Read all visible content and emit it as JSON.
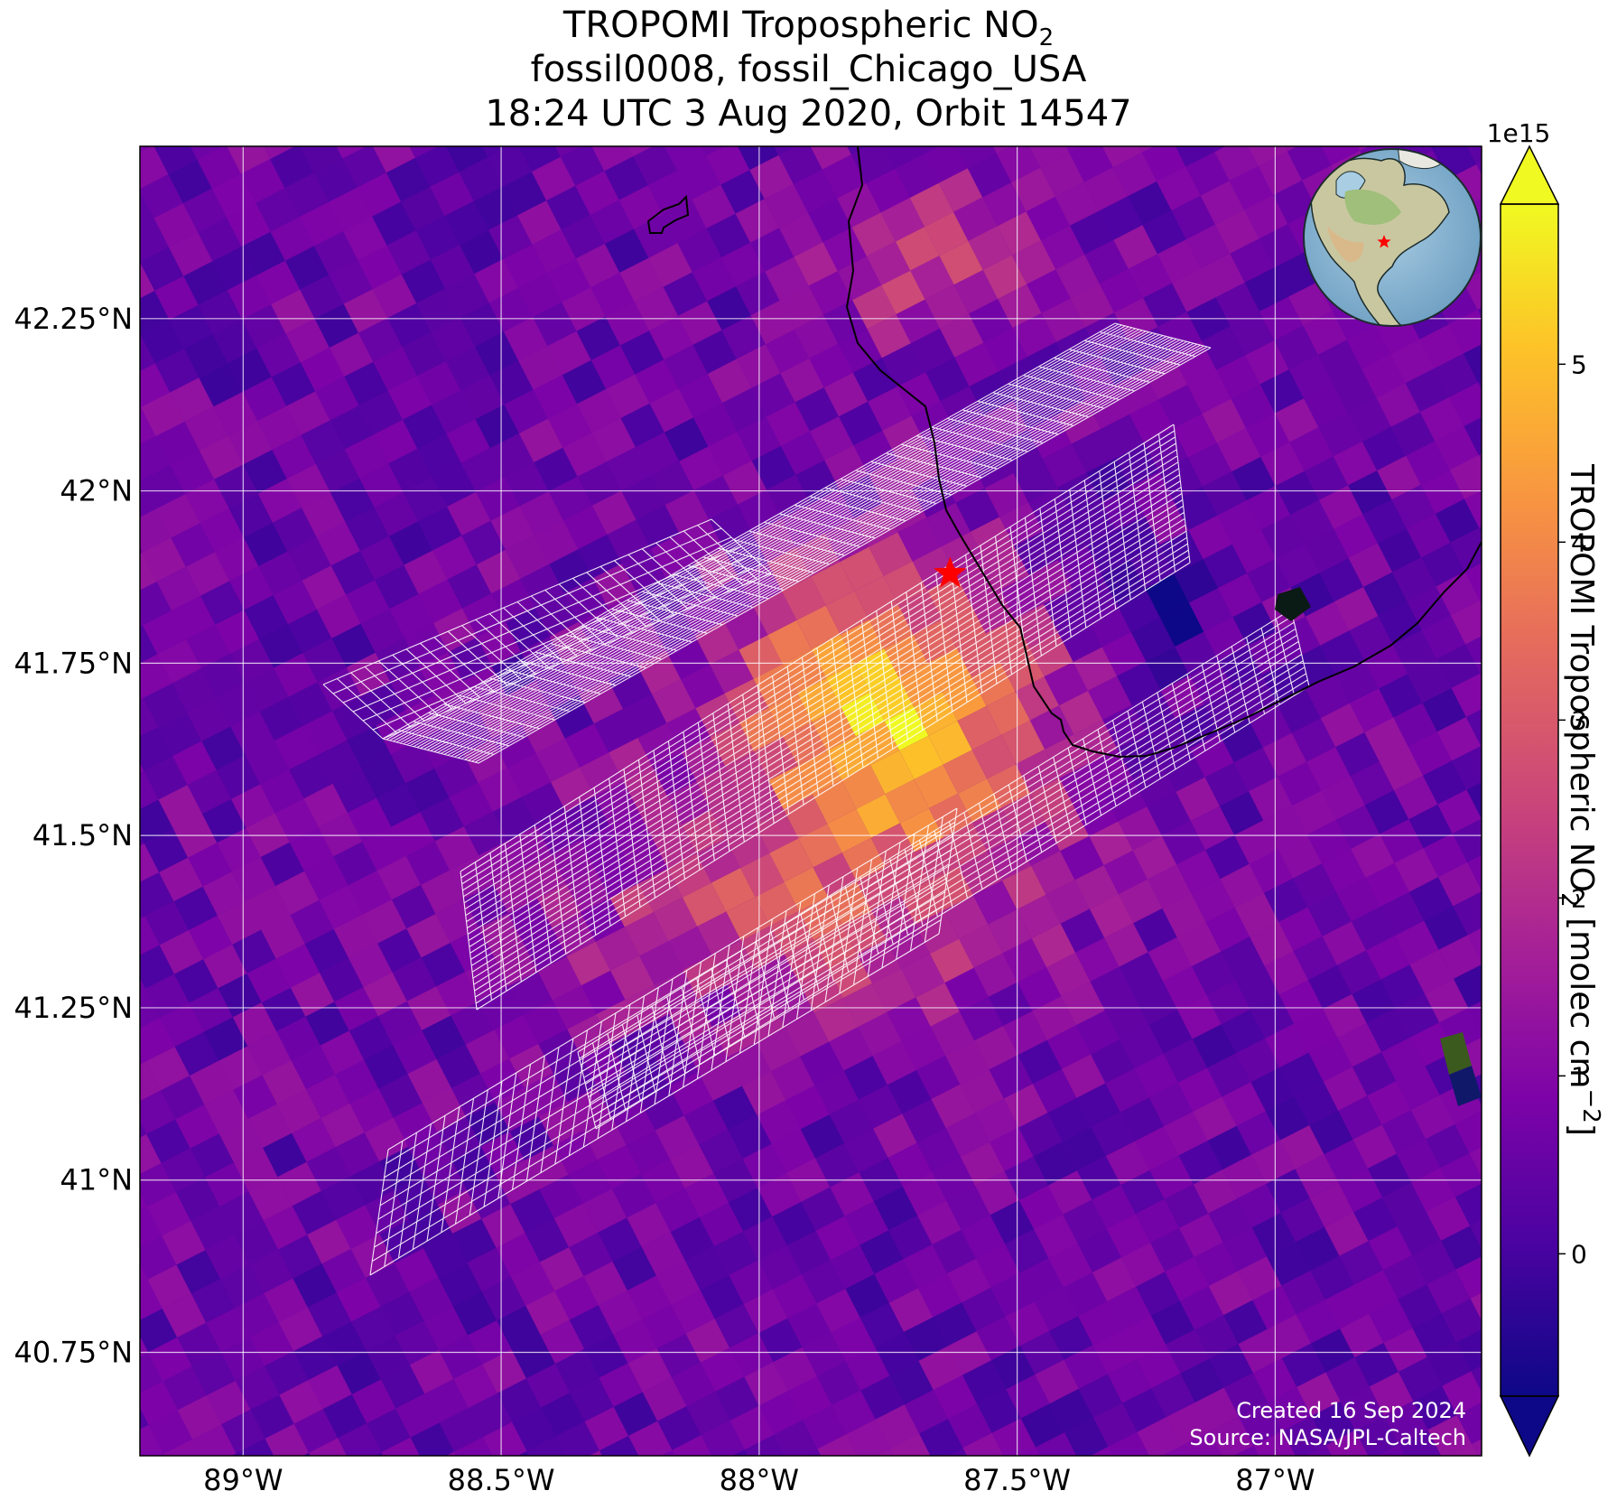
{
  "title": {
    "line1_prefix": "TROPOMI Tropospheric NO",
    "line1_sub": "2",
    "line2": "fossil0008, fossil_Chicago_USA",
    "line3": "18:24 UTC 3 Aug 2020, Orbit 14547"
  },
  "map": {
    "lon_range": [
      -89.2,
      -86.6
    ],
    "lat_range": [
      40.6,
      42.5
    ],
    "lon_ticks": [
      {
        "value": -89.0,
        "label": "89°W"
      },
      {
        "value": -88.5,
        "label": "88.5°W"
      },
      {
        "value": -88.0,
        "label": "88°W"
      },
      {
        "value": -87.5,
        "label": "87.5°W"
      },
      {
        "value": -87.0,
        "label": "87°W"
      }
    ],
    "lat_ticks": [
      {
        "value": 42.25,
        "label": "42.25°N"
      },
      {
        "value": 42.0,
        "label": "42°N"
      },
      {
        "value": 41.75,
        "label": "41.75°N"
      },
      {
        "value": 41.5,
        "label": "41.5°N"
      },
      {
        "value": 41.25,
        "label": "41.25°N"
      },
      {
        "value": 41.0,
        "label": "41°N"
      },
      {
        "value": 40.75,
        "label": "40.75°N"
      }
    ],
    "site_marker": {
      "lon": -87.63,
      "lat": 41.88,
      "color": "#ff0000"
    },
    "credit_line1": "Created 16 Sep 2024",
    "credit_line2": "Source: NASA/JPL-Caltech"
  },
  "colorbar": {
    "colormap": "plasma",
    "range": [
      -0.8,
      5.9
    ],
    "multiplier_label": "1e15",
    "ticks": [
      {
        "value": 0,
        "label": "0"
      },
      {
        "value": 1,
        "label": "1"
      },
      {
        "value": 2,
        "label": "2"
      },
      {
        "value": 3,
        "label": "3"
      },
      {
        "value": 4,
        "label": "4"
      },
      {
        "value": 5,
        "label": "5"
      }
    ],
    "label_prefix": "TROPOMI Tropospheric NO",
    "label_sub": "2",
    "label_mid": " [molec cm",
    "label_sup": "−2",
    "label_suffix": "]",
    "extend": "both"
  },
  "inset_globe": {
    "marker_color": "#ff0000"
  }
}
